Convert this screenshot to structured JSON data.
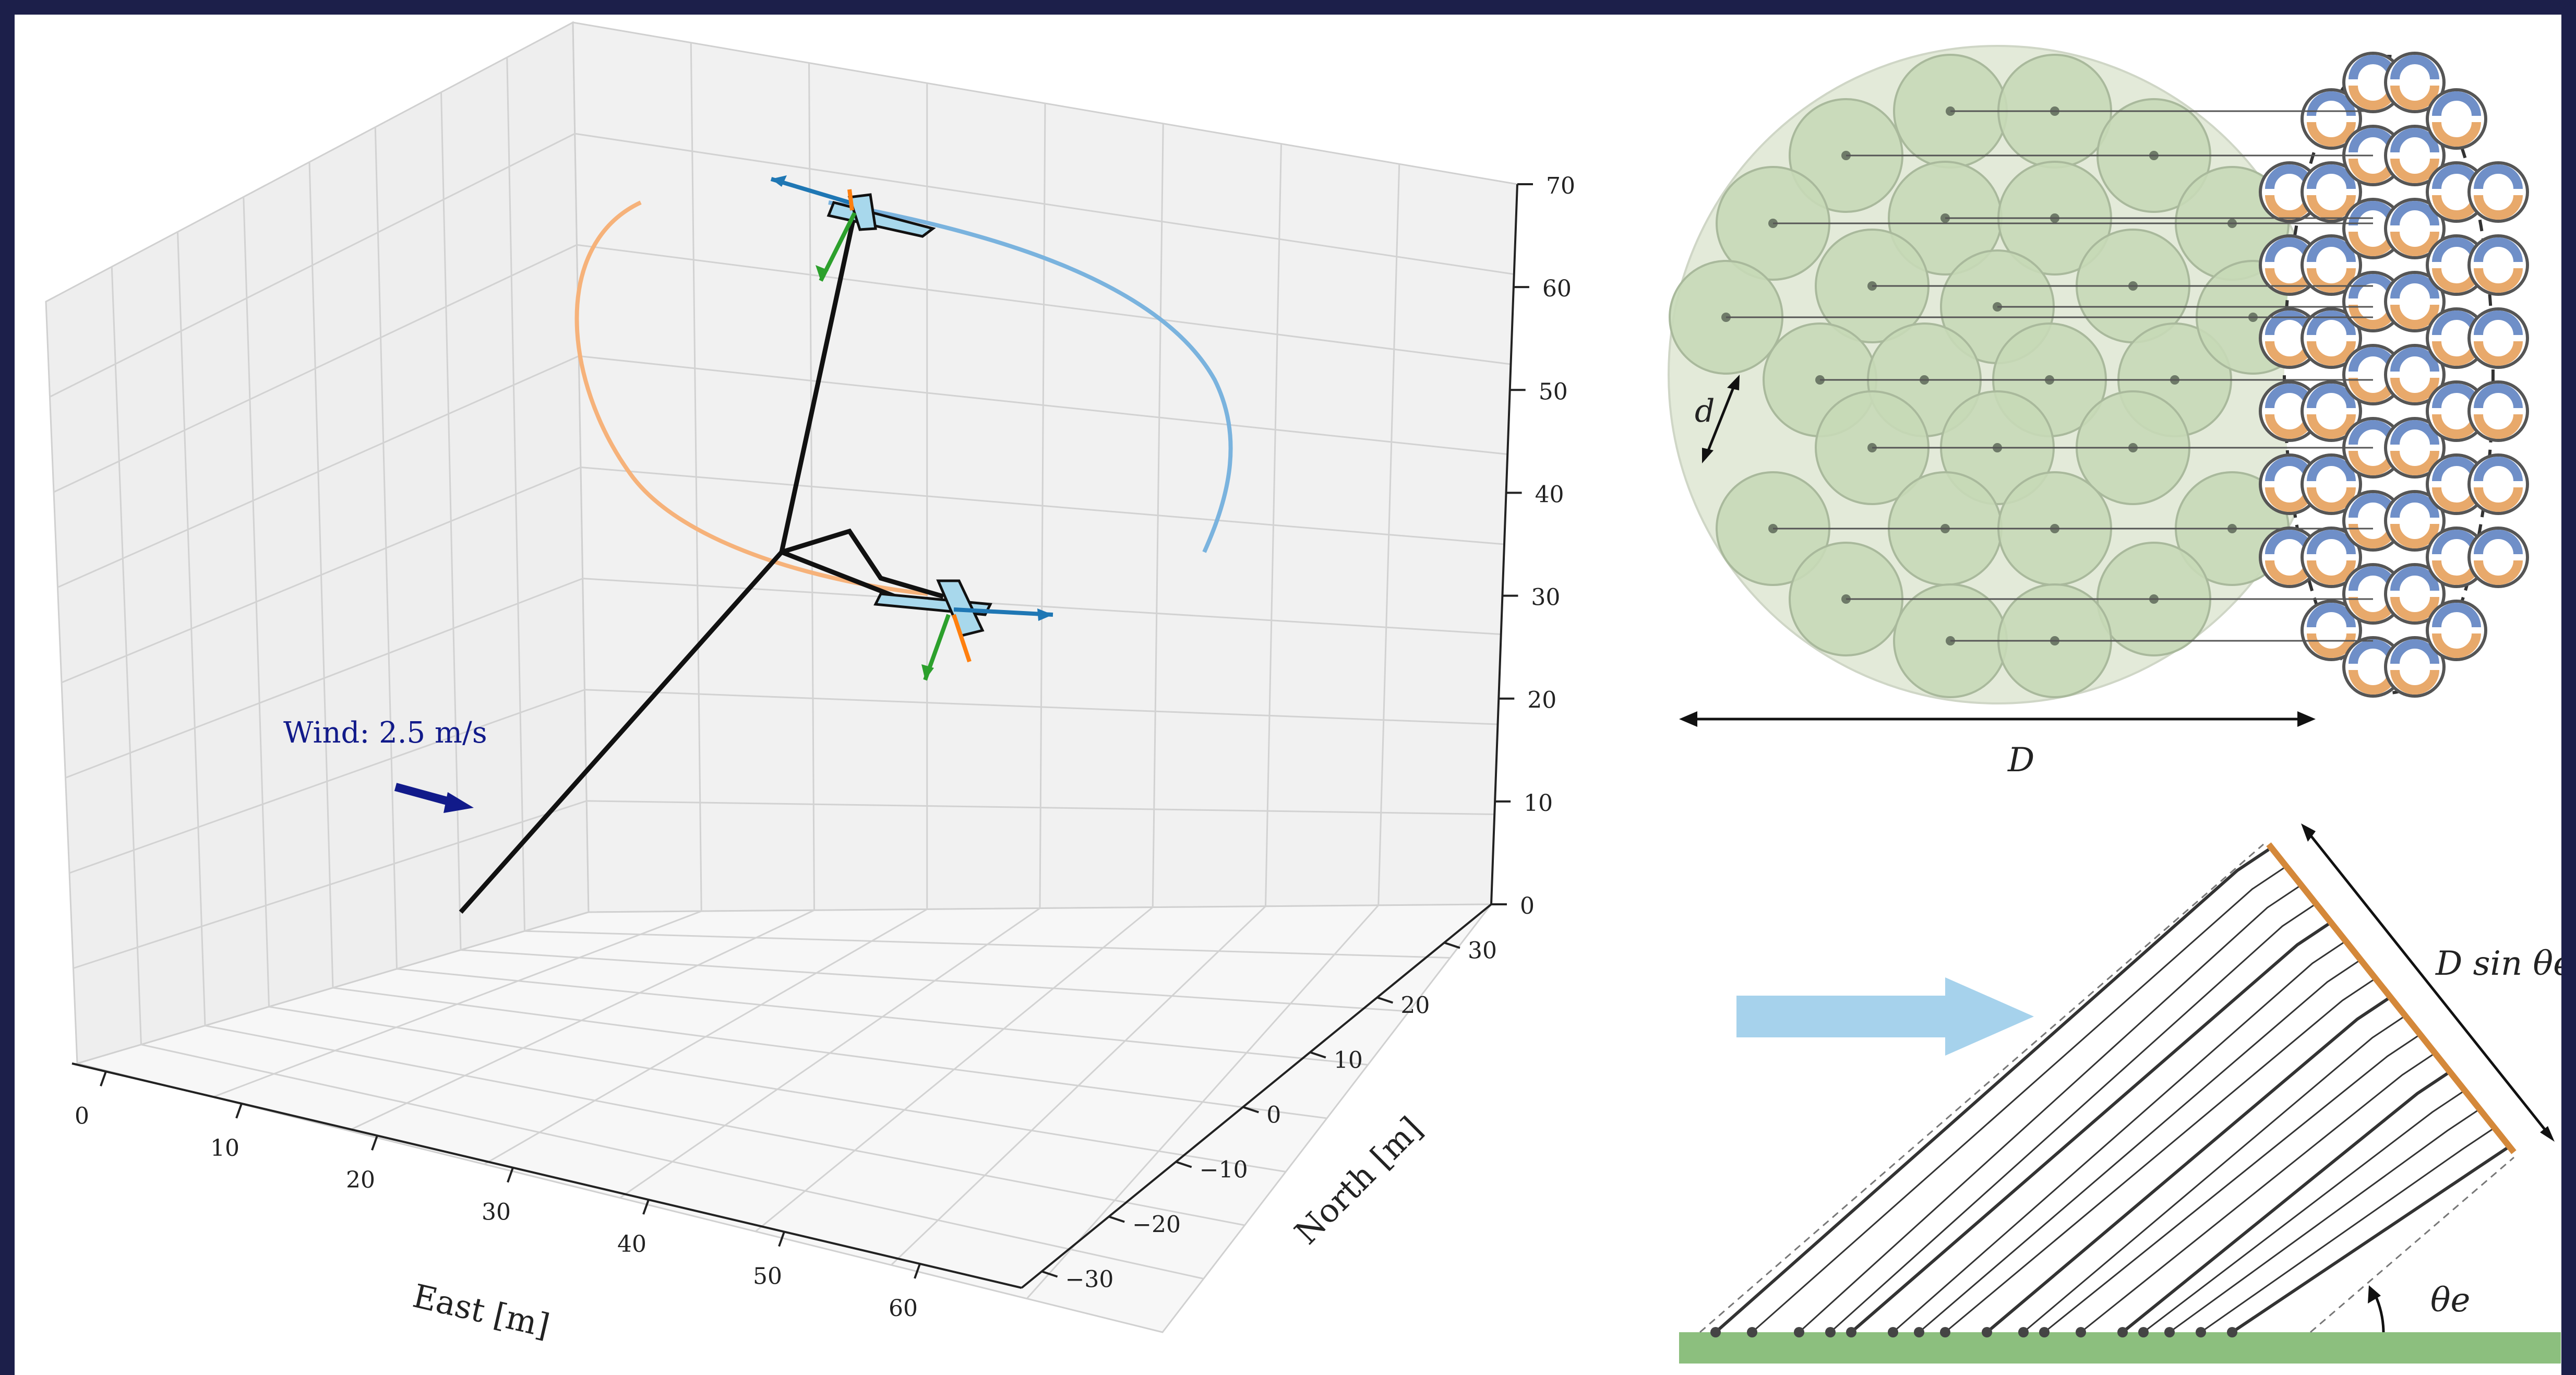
{
  "plot3d": {
    "z_ticks": [
      "0",
      "10",
      "20",
      "30",
      "40",
      "50",
      "60",
      "70"
    ],
    "east_ticks": [
      "0",
      "10",
      "20",
      "30",
      "40",
      "50",
      "60"
    ],
    "north_ticks": [
      "−30",
      "−20",
      "−10",
      "0",
      "10",
      "20",
      "30"
    ],
    "east_label": "East [m]",
    "north_label": "North [m]",
    "wind_label": "Wind:  2.5 m/s",
    "colors": {
      "tether": "#111111",
      "path_a": "#f6b27a",
      "path_b": "#7ab3de",
      "axis_blue": "#1f77b4",
      "axis_orange": "#ff7f0e",
      "axis_green": "#2ca02c",
      "aircraft": "#a8d8ec",
      "wind_arrow": "#111a8a"
    }
  },
  "circles_diagram": {
    "d_label": "d",
    "D_label": "D",
    "colors": {
      "big": "#e3ead9",
      "small": "#c6d9b7",
      "blue": "#6f8fc8",
      "orange": "#e8a96b"
    }
  },
  "slant_diagram": {
    "Dsin_label": "D sin θe",
    "theta_label": "θe",
    "colors": {
      "ground": "#8cbf7e",
      "wind": "#a6d2ec",
      "edge": "#d4883a"
    }
  }
}
